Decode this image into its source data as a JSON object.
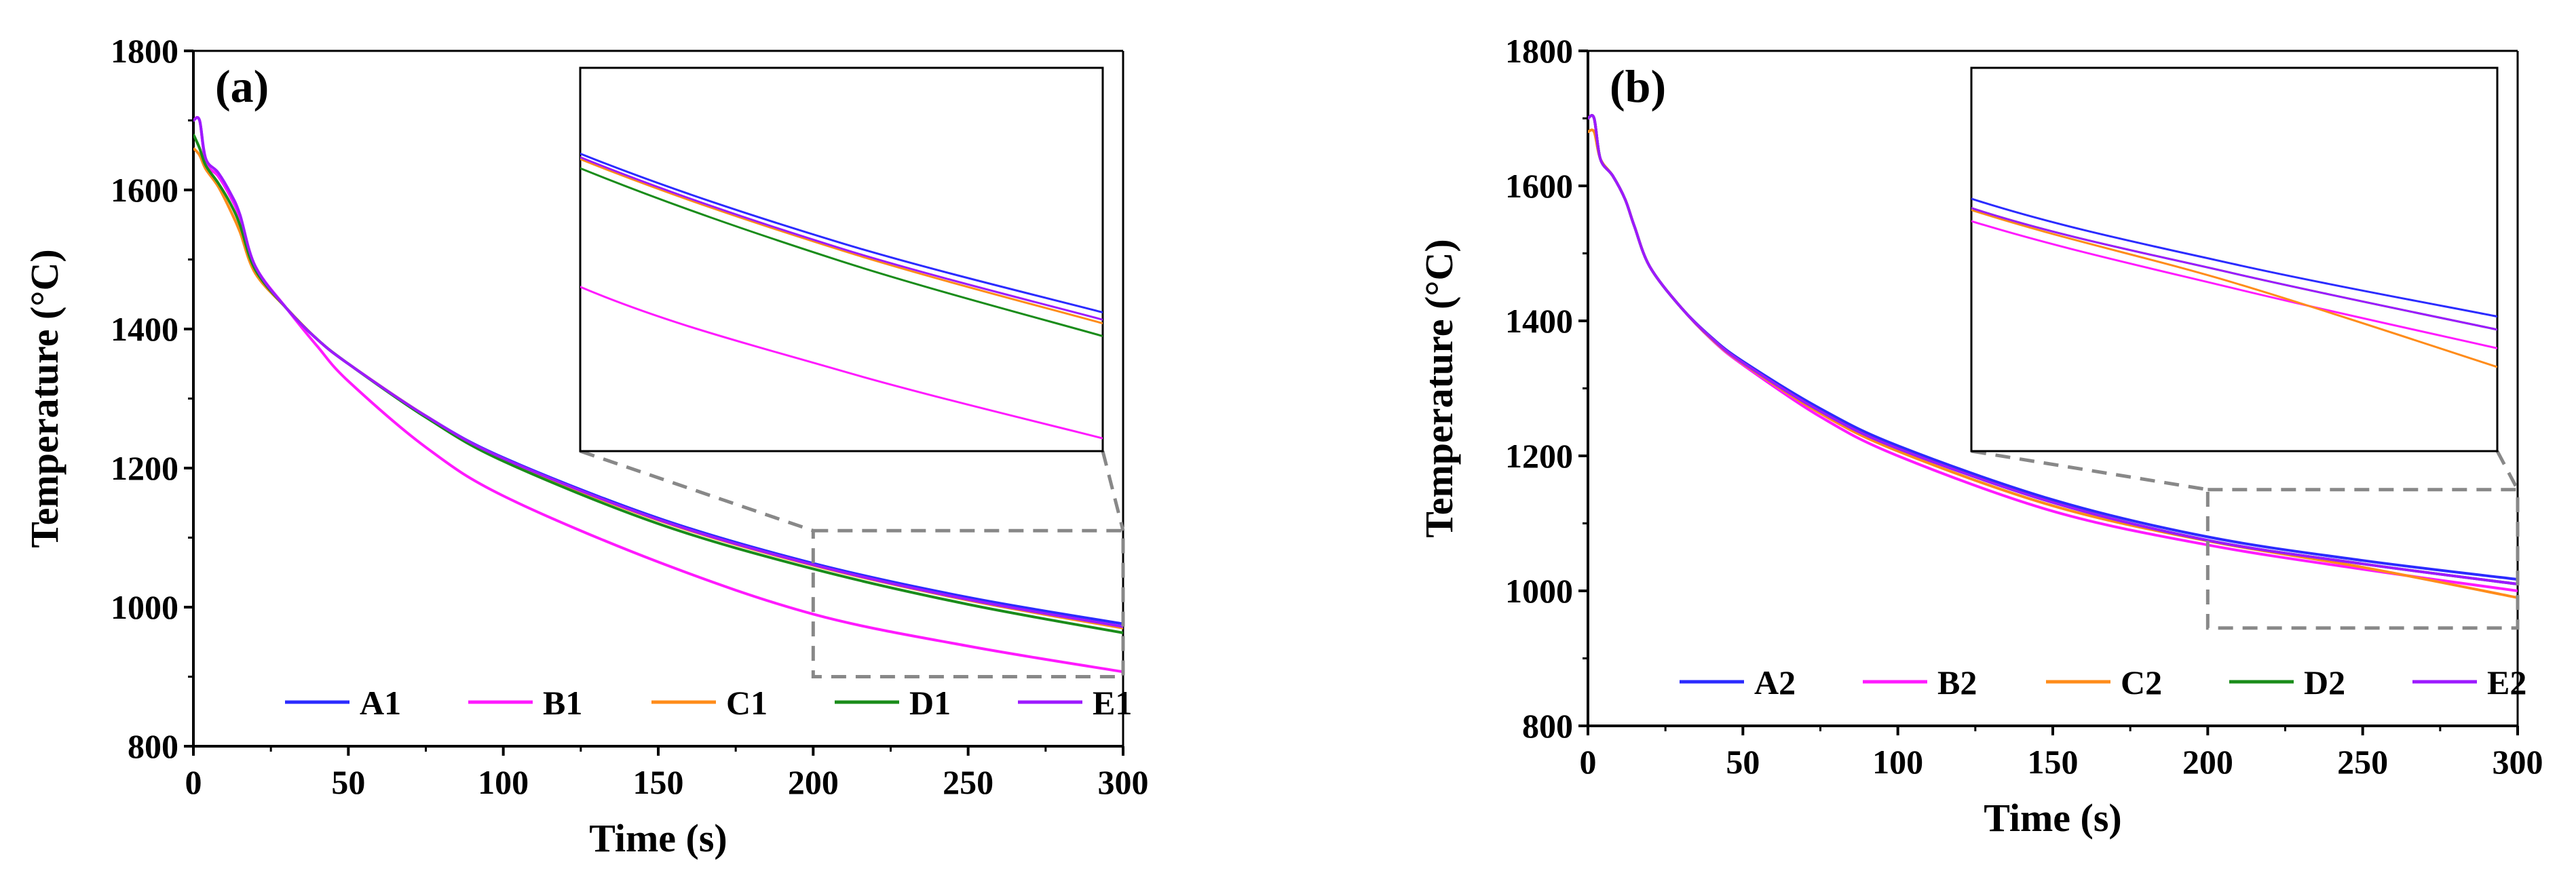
{
  "chart_data": [
    {
      "type": "line",
      "panel_label": "(a)",
      "xlabel": "Time (s)",
      "ylabel": "Temperature (°C)",
      "xlim": [
        0,
        300
      ],
      "ylim": [
        800,
        1800
      ],
      "xticks": [
        "0",
        "50",
        "100",
        "150",
        "200",
        "250",
        "300"
      ],
      "yticks": [
        "800",
        "1000",
        "1200",
        "1400",
        "1600",
        "1800"
      ],
      "legend_position": "bottom",
      "x": [
        0,
        2,
        4,
        8,
        12,
        15,
        20,
        30,
        40,
        50,
        75,
        100,
        150,
        200,
        250,
        300
      ],
      "series": [
        {
          "name": "A1",
          "color": "#2b2bff",
          "values": [
            1700,
            1700,
            1640,
            1620,
            1590,
            1560,
            1490,
            1430,
            1385,
            1350,
            1275,
            1215,
            1128,
            1063,
            1014,
            976
          ]
        },
        {
          "name": "B1",
          "color": "#ff1aff",
          "values": [
            1700,
            1700,
            1640,
            1620,
            1590,
            1560,
            1490,
            1430,
            1375,
            1325,
            1230,
            1160,
            1065,
            990,
            944,
            907
          ]
        },
        {
          "name": "C1",
          "color": "#ff8c1a",
          "values": [
            1660,
            1650,
            1630,
            1605,
            1570,
            1540,
            1480,
            1430,
            1385,
            1350,
            1275,
            1213,
            1125,
            1060,
            1010,
            970
          ]
        },
        {
          "name": "D1",
          "color": "#1a8c1a",
          "values": [
            1680,
            1660,
            1635,
            1610,
            1580,
            1550,
            1485,
            1430,
            1385,
            1350,
            1273,
            1210,
            1120,
            1055,
            1004,
            963
          ]
        },
        {
          "name": "E1",
          "color": "#9d1aff",
          "values": [
            1700,
            1700,
            1645,
            1625,
            1595,
            1565,
            1490,
            1430,
            1385,
            1350,
            1275,
            1214,
            1126,
            1061,
            1011,
            972
          ]
        }
      ],
      "inset": {
        "xlim": [
          200,
          300
        ],
        "ylim": [
          900,
          1110
        ]
      }
    },
    {
      "type": "line",
      "panel_label": "(b)",
      "xlabel": "Time (s)",
      "ylabel": "Temperature (°C)",
      "xlim": [
        0,
        300
      ],
      "ylim": [
        800,
        1800
      ],
      "xticks": [
        "0",
        "50",
        "100",
        "150",
        "200",
        "250",
        "300"
      ],
      "yticks": [
        "800",
        "1000",
        "1200",
        "1400",
        "1600",
        "1800"
      ],
      "legend_position": "bottom",
      "x": [
        0,
        2,
        4,
        8,
        12,
        15,
        20,
        30,
        40,
        50,
        75,
        100,
        150,
        200,
        250,
        300
      ],
      "series": [
        {
          "name": "A2",
          "color": "#2b2bff",
          "values": [
            1700,
            1700,
            1640,
            1615,
            1580,
            1540,
            1480,
            1420,
            1375,
            1340,
            1270,
            1215,
            1135,
            1080,
            1045,
            1017
          ]
        },
        {
          "name": "B2",
          "color": "#ff1aff",
          "values": [
            1700,
            1700,
            1640,
            1615,
            1580,
            1540,
            1480,
            1420,
            1372,
            1335,
            1258,
            1200,
            1118,
            1068,
            1032,
            1000
          ]
        },
        {
          "name": "C2",
          "color": "#ff8c1a",
          "values": [
            1680,
            1680,
            1640,
            1615,
            1580,
            1540,
            1480,
            1420,
            1373,
            1337,
            1263,
            1207,
            1126,
            1074,
            1035,
            990
          ]
        },
        {
          "name": "D2",
          "color": "#1a8c1a",
          "values": [
            1700,
            1700,
            1640,
            1615,
            1580,
            1540,
            1480,
            1420,
            1374,
            1338,
            1266,
            1211,
            1131,
            1075,
            1040,
            1010
          ]
        },
        {
          "name": "E2",
          "color": "#9d1aff",
          "values": [
            1700,
            1700,
            1640,
            1615,
            1580,
            1540,
            1480,
            1420,
            1374,
            1338,
            1266,
            1211,
            1131,
            1075,
            1040,
            1010
          ]
        }
      ],
      "inset": {
        "xlim": [
          200,
          300
        ],
        "ylim": [
          945,
          1150
        ]
      }
    }
  ]
}
